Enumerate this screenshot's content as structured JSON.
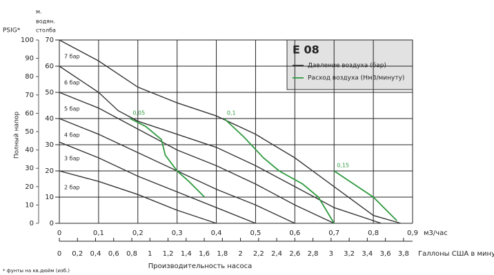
{
  "chart_data": {
    "type": "line",
    "title": "E 08",
    "xlabel": "Производительность насоса",
    "x_unit": "м3/час",
    "x2_label": "Галлоны США в минуту",
    "ylabel": "Полный напор",
    "y2_label": "PSIG*",
    "y_unit_label": [
      "м.",
      "водян.",
      "столба"
    ],
    "footnote": "* фунты на кв.дюйм (изб.)",
    "grid": true,
    "xlim": [
      0,
      0.9
    ],
    "xticks": [
      0,
      {
        "value": 0.1,
        "label": "0,1"
      },
      {
        "value": 0.2,
        "label": "0,2"
      },
      {
        "value": 0.3,
        "label": "0,3"
      },
      {
        "value": 0.4,
        "label": "0,4"
      },
      {
        "value": 0.5,
        "label": "0,5"
      },
      {
        "value": 0.6,
        "label": "0,6"
      },
      {
        "value": 0.7,
        "label": "0,7"
      },
      {
        "value": 0.8,
        "label": "0,8"
      },
      {
        "value": 0.9,
        "label": "0,9"
      }
    ],
    "x2lim": [
      0,
      3.9
    ],
    "x2ticks": [
      0,
      {
        "value": 0.2,
        "label": "0,2"
      },
      {
        "value": 0.4,
        "label": "0,4"
      },
      {
        "value": 0.6,
        "label": "0,6"
      },
      {
        "value": 0.8,
        "label": "0,8"
      },
      1,
      {
        "value": 1.2,
        "label": "1,2"
      },
      {
        "value": 1.4,
        "label": "1,4"
      },
      {
        "value": 1.6,
        "label": "1,6"
      },
      {
        "value": 1.8,
        "label": "1,8"
      },
      2,
      {
        "value": 2.2,
        "label": "2,2"
      },
      {
        "value": 2.4,
        "label": "2,4"
      },
      {
        "value": 2.6,
        "label": "2,6"
      },
      {
        "value": 2.8,
        "label": "2,8"
      },
      3,
      {
        "value": 3.2,
        "label": "3,2"
      },
      {
        "value": 3.4,
        "label": "3,4"
      },
      {
        "value": 3.6,
        "label": "3,6"
      },
      {
        "value": 3.8,
        "label": "3,8"
      }
    ],
    "ylim": [
      0,
      70
    ],
    "yticks": [
      0,
      10,
      20,
      30,
      40,
      50,
      60,
      70
    ],
    "y2lim": [
      0,
      100
    ],
    "y2ticks": [
      0,
      10,
      20,
      30,
      40,
      50,
      60,
      70,
      80,
      90,
      100
    ],
    "legend": [
      {
        "name": "Давление воздуха (бар)",
        "color": "#333333"
      },
      {
        "name": "Расход воздуха (Нм3/минуту)",
        "color": "#2e9a3e"
      }
    ],
    "series": [
      {
        "name": "2 бар",
        "kind": "pressure",
        "color": "#333333",
        "x": [
          0,
          0.1,
          0.2,
          0.3,
          0.4
        ],
        "values": [
          20,
          16,
          11,
          5,
          0
        ]
      },
      {
        "name": "3 бар",
        "kind": "pressure",
        "color": "#333333",
        "x": [
          0,
          0.1,
          0.2,
          0.3,
          0.4,
          0.5
        ],
        "values": [
          31,
          25,
          18,
          12,
          6,
          0
        ]
      },
      {
        "name": "4 бар",
        "kind": "pressure",
        "color": "#333333",
        "x": [
          0,
          0.1,
          0.2,
          0.3,
          0.4,
          0.5,
          0.6
        ],
        "values": [
          40,
          34,
          27,
          20,
          13,
          7,
          0
        ]
      },
      {
        "name": "5 бар",
        "kind": "pressure",
        "color": "#333333",
        "x": [
          0,
          0.1,
          0.15,
          0.2,
          0.3,
          0.4,
          0.5,
          0.6,
          0.7
        ],
        "values": [
          50,
          44,
          40,
          36,
          28,
          22,
          15,
          7,
          0
        ]
      },
      {
        "name": "6 бар",
        "kind": "pressure",
        "color": "#333333",
        "x": [
          0,
          0.1,
          0.15,
          0.2,
          0.3,
          0.4,
          0.5,
          0.6,
          0.7,
          0.82
        ],
        "values": [
          60,
          50,
          43,
          39,
          34,
          29,
          22,
          14,
          6,
          0
        ]
      },
      {
        "name": "7 бар",
        "kind": "pressure",
        "color": "#333333",
        "x": [
          0,
          0.1,
          0.2,
          0.3,
          0.4,
          0.5,
          0.6,
          0.7,
          0.8,
          0.87
        ],
        "values": [
          70,
          62,
          52,
          46,
          41,
          34,
          25,
          14,
          3,
          0
        ]
      },
      {
        "name": "0,05",
        "kind": "air",
        "color": "#2e9a3e",
        "x": [
          0.18,
          0.22,
          0.26,
          0.27,
          0.3,
          0.33,
          0.37
        ],
        "values": [
          40,
          37,
          32,
          26,
          20,
          16,
          10
        ]
      },
      {
        "name": "0,1",
        "kind": "air",
        "color": "#2e9a3e",
        "x": [
          0.42,
          0.47,
          0.52,
          0.56,
          0.62,
          0.66,
          0.7
        ],
        "values": [
          40,
          33,
          25,
          20,
          15,
          10,
          0
        ]
      },
      {
        "name": "0,15",
        "kind": "air",
        "color": "#2e9a3e",
        "x": [
          0.7,
          0.75,
          0.8,
          0.86
        ],
        "values": [
          20,
          15,
          10,
          1
        ]
      }
    ]
  }
}
